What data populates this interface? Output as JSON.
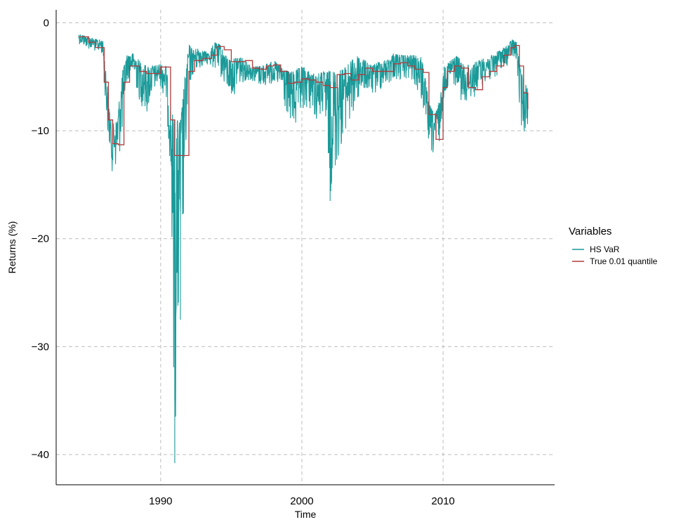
{
  "chart_data": {
    "type": "line",
    "title": "",
    "xlabel": "Time",
    "ylabel": "Returns (%)",
    "xlim": [
      1982.6,
      2017.9
    ],
    "ylim": [
      -42.8,
      1.2
    ],
    "x_ticks": [
      1990,
      2000,
      2010
    ],
    "x_tick_labels": [
      "1990",
      "2000",
      "2010"
    ],
    "y_ticks": [
      0,
      -10,
      -20,
      -30,
      -40
    ],
    "y_tick_labels": [
      "0",
      "−10",
      "−20",
      "−30",
      "−40"
    ],
    "grid": true,
    "legend": {
      "title": "Variables",
      "position": "right",
      "entries": [
        "HS VaR",
        "True 0.01 quantile"
      ]
    },
    "series": [
      {
        "name": "HS VaR",
        "color": "#1a9a99",
        "style": "noisy-band",
        "x": [
          1984.2,
          1984.9,
          1985.4,
          1985.9,
          1986.2,
          1986.5,
          1986.9,
          1987.3,
          1987.6,
          1988.0,
          1988.5,
          1989.0,
          1989.5,
          1990.0,
          1990.4,
          1990.7,
          1991.0,
          1991.4,
          1991.8,
          1992.0,
          1992.3,
          1992.7,
          1993.0,
          1993.4,
          1993.8,
          1994.2,
          1994.6,
          1995.0,
          1995.5,
          1996.0,
          1996.5,
          1997.0,
          1997.5,
          1998.0,
          1998.5,
          1999.0,
          1999.5,
          2000.0,
          2000.5,
          2001.0,
          2001.5,
          2002.0,
          2002.5,
          2003.0,
          2003.5,
          2004.0,
          2004.5,
          2005.0,
          2005.5,
          2006.0,
          2006.5,
          2007.0,
          2007.5,
          2008.0,
          2008.5,
          2009.0,
          2009.4,
          2009.8,
          2010.1,
          2010.5,
          2011.0,
          2011.5,
          2012.0,
          2012.5,
          2013.0,
          2013.5,
          2014.0,
          2014.5,
          2014.9,
          2015.2,
          2015.5,
          2015.8,
          2016.0
        ],
        "upper": [
          -1.0,
          -1.3,
          -1.5,
          -1.6,
          -5.5,
          -9.5,
          -9.0,
          -4.5,
          -3.0,
          -2.8,
          -3.5,
          -4.0,
          -4.0,
          -3.8,
          -4.0,
          -8.0,
          -9.0,
          -9.0,
          -4.0,
          -2.0,
          -2.5,
          -2.3,
          -2.6,
          -2.8,
          -1.8,
          -2.0,
          -3.0,
          -3.5,
          -3.0,
          -3.5,
          -4.0,
          -4.0,
          -3.8,
          -3.5,
          -4.0,
          -4.5,
          -4.5,
          -4.0,
          -4.5,
          -4.8,
          -4.5,
          -4.5,
          -4.5,
          -4.2,
          -3.5,
          -3.0,
          -3.5,
          -4.0,
          -3.5,
          -3.5,
          -2.8,
          -3.0,
          -3.0,
          -3.0,
          -3.2,
          -7.5,
          -8.5,
          -7.0,
          -4.0,
          -3.5,
          -3.0,
          -4.0,
          -3.8,
          -3.5,
          -3.2,
          -3.0,
          -2.5,
          -2.2,
          -1.5,
          -1.8,
          -4.5,
          -5.5,
          -6.0
        ],
        "lower": [
          -2.0,
          -2.5,
          -2.8,
          -3.0,
          -10.0,
          -14.0,
          -14.0,
          -11.0,
          -5.5,
          -5.0,
          -7.5,
          -9.0,
          -6.5,
          -6.0,
          -8.0,
          -14.0,
          -40.8,
          -27.5,
          -14.0,
          -6.5,
          -5.0,
          -4.5,
          -4.0,
          -4.0,
          -4.5,
          -5.0,
          -6.5,
          -7.5,
          -6.0,
          -5.5,
          -5.5,
          -6.0,
          -6.0,
          -5.8,
          -6.5,
          -9.5,
          -11.0,
          -9.0,
          -8.0,
          -9.5,
          -9.0,
          -16.5,
          -14.0,
          -10.5,
          -10.0,
          -7.5,
          -6.5,
          -7.0,
          -6.5,
          -6.0,
          -5.5,
          -5.5,
          -5.5,
          -6.0,
          -8.0,
          -12.0,
          -13.0,
          -11.0,
          -6.5,
          -6.0,
          -6.0,
          -8.5,
          -7.5,
          -6.5,
          -5.5,
          -6.0,
          -4.5,
          -4.2,
          -3.5,
          -3.8,
          -10.0,
          -10.5,
          -9.5
        ]
      },
      {
        "name": "True 0.01 quantile",
        "color": "#b23a3a",
        "style": "step",
        "x": [
          1984.2,
          1984.9,
          1985.4,
          1986.0,
          1986.3,
          1986.6,
          1987.0,
          1987.4,
          1987.8,
          1988.5,
          1989.0,
          1990.0,
          1990.7,
          1991.0,
          1991.6,
          1992.0,
          1992.4,
          1993.0,
          1993.6,
          1994.0,
          1994.5,
          1995.0,
          1995.5,
          1996.0,
          1996.5,
          1997.0,
          1997.5,
          1998.0,
          1998.5,
          1999.0,
          1999.5,
          2000.0,
          2000.5,
          2001.0,
          2001.5,
          2002.0,
          2002.5,
          2003.0,
          2003.5,
          2004.0,
          2004.5,
          2005.0,
          2005.5,
          2006.0,
          2006.5,
          2007.0,
          2007.5,
          2008.0,
          2008.6,
          2009.0,
          2009.5,
          2010.0,
          2010.3,
          2010.8,
          2011.3,
          2011.8,
          2012.3,
          2012.8,
          2013.3,
          2013.8,
          2014.3,
          2014.8,
          2015.1,
          2015.4,
          2015.7,
          2016.0
        ],
        "y": [
          -1.3,
          -1.8,
          -2.3,
          -5.5,
          -9.0,
          -11.2,
          -11.3,
          -5.5,
          -4.0,
          -4.5,
          -4.7,
          -4.1,
          -9.0,
          -12.3,
          -12.3,
          -4.5,
          -3.5,
          -3.3,
          -3.0,
          -2.2,
          -2.5,
          -3.6,
          -3.6,
          -3.5,
          -4.2,
          -4.3,
          -4.0,
          -3.9,
          -4.5,
          -5.6,
          -5.5,
          -5.2,
          -5.3,
          -5.5,
          -5.8,
          -6.0,
          -4.8,
          -4.7,
          -5.3,
          -4.8,
          -4.2,
          -4.5,
          -4.5,
          -4.5,
          -3.8,
          -3.7,
          -4.0,
          -4.3,
          -4.6,
          -8.5,
          -10.8,
          -6.0,
          -4.5,
          -4.0,
          -4.2,
          -6.0,
          -6.2,
          -5.0,
          -4.5,
          -4.0,
          -3.0,
          -2.3,
          -2.1,
          -4.0,
          -6.5,
          -8.0
        ]
      }
    ]
  }
}
